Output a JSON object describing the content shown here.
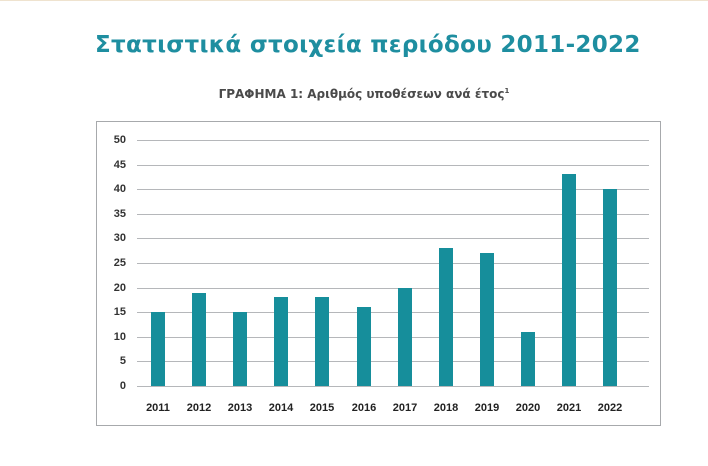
{
  "page": {
    "title": "Στατιστικά στοιχεία περιόδου 2011-2022",
    "chart_label": "ΓΡΑΦΗΜΑ 1: Αριθμός υποθέσεων ανά έτος",
    "footnote_marker": "1"
  },
  "colors": {
    "title": "#1e8ea0",
    "bar": "#168e9b",
    "grid": "#b5b7ba",
    "frame": "#a7a9ac"
  },
  "chart_data": {
    "type": "bar",
    "title": "ΓΡΑΦΗΜΑ 1: Αριθμός υποθέσεων ανά έτος",
    "xlabel": "",
    "ylabel": "",
    "categories": [
      "2011",
      "2012",
      "2013",
      "2014",
      "2015",
      "2016",
      "2017",
      "2018",
      "2019",
      "2020",
      "2021",
      "2022"
    ],
    "values": [
      15,
      19,
      15,
      18,
      18,
      16,
      20,
      28,
      27,
      11,
      43,
      40
    ],
    "ylim": [
      0,
      50
    ],
    "yticks": [
      "0",
      "5",
      "10",
      "15",
      "20",
      "25",
      "30",
      "35",
      "40",
      "45",
      "50"
    ],
    "grid": true,
    "legend": null
  }
}
